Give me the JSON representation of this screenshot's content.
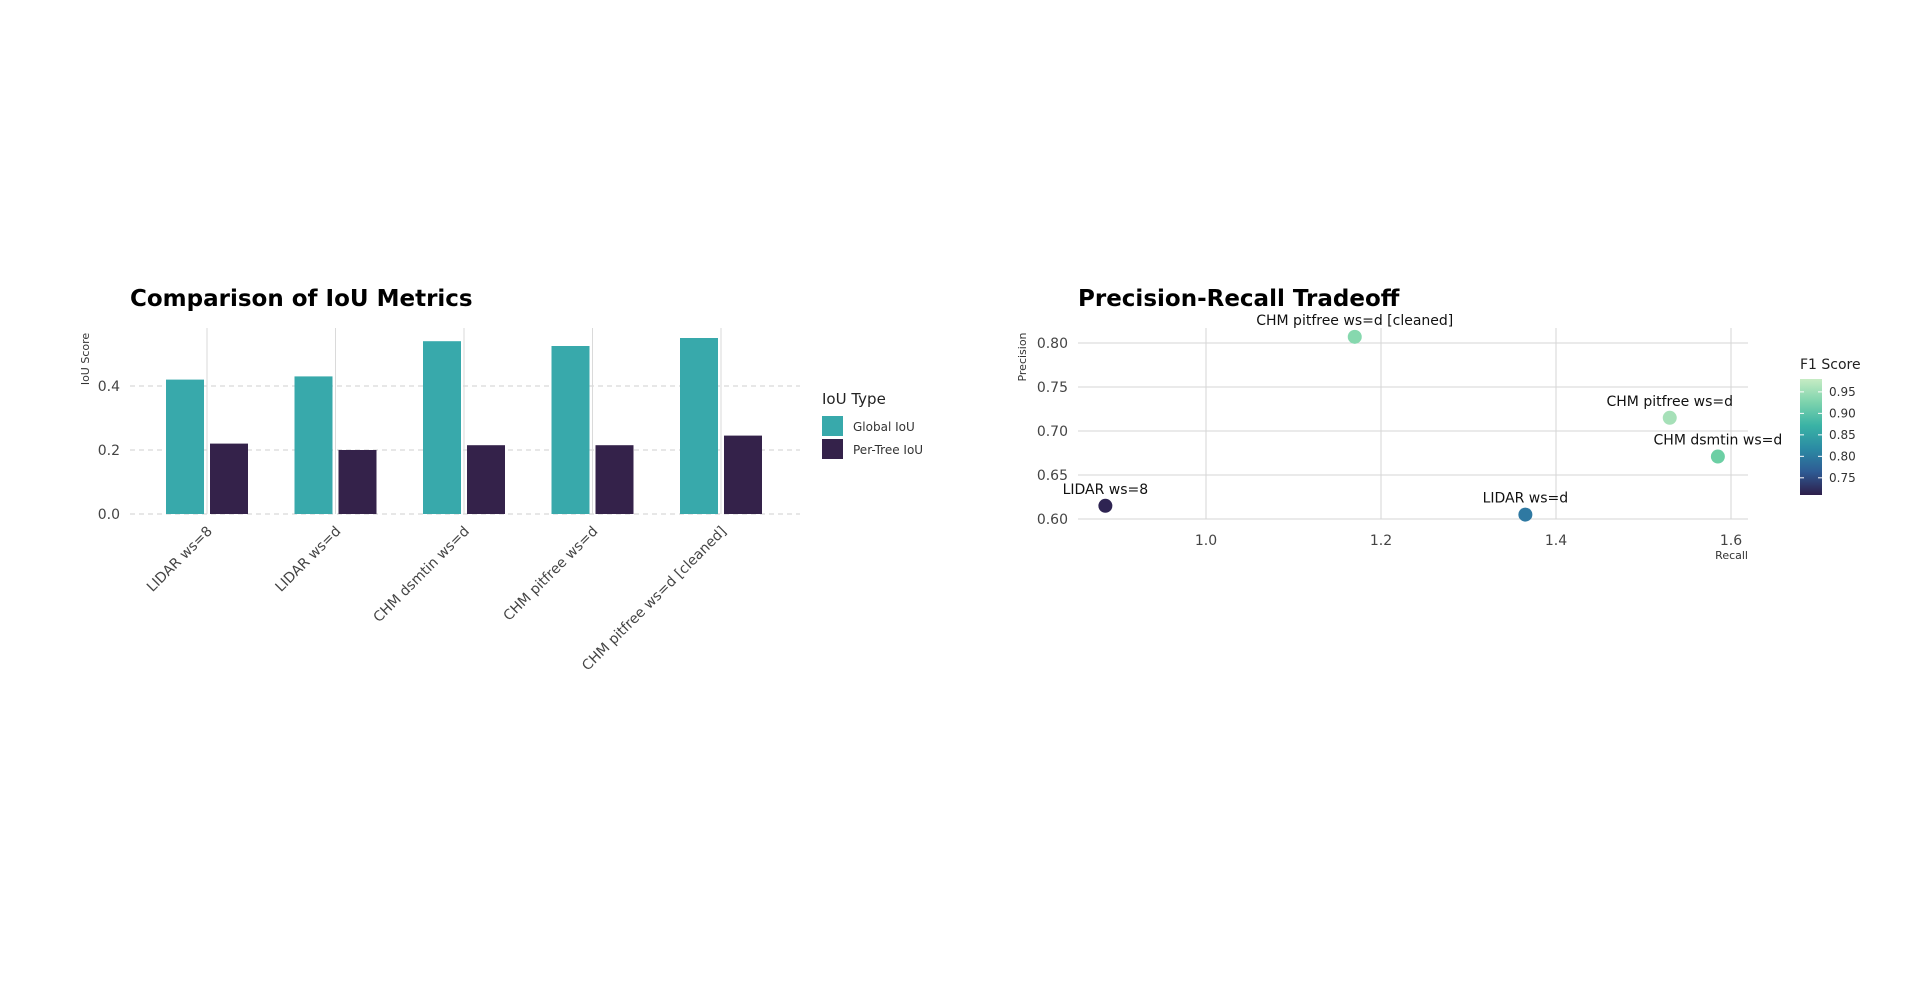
{
  "chart_data": [
    {
      "type": "bar",
      "title": "Comparison of IoU Metrics",
      "xlabel": "",
      "ylabel": "IoU Score",
      "ylim": [
        0,
        0.58
      ],
      "yticks": [
        "0.0",
        "0.2",
        "0.4"
      ],
      "categories": [
        "LIDAR ws=8",
        "LIDAR ws=d",
        "CHM dsmtin ws=d",
        "CHM pitfree ws=d",
        "CHM pitfree ws=d [cleaned]"
      ],
      "series": [
        {
          "name": "Global IoU",
          "color": "#38a9ab",
          "values": [
            0.42,
            0.43,
            0.54,
            0.525,
            0.55
          ]
        },
        {
          "name": "Per-Tree IoU",
          "color": "#34224a",
          "values": [
            0.22,
            0.2,
            0.215,
            0.215,
            0.245
          ]
        }
      ],
      "legend": {
        "title": "IoU Type",
        "placement": "right"
      },
      "grid": "horizontal dashed + vertical solid"
    },
    {
      "type": "scatter",
      "title": "Precision-Recall Tradeoff",
      "xlabel": "Recall",
      "ylabel": "Precision",
      "xlim": [
        0.8,
        1.62
      ],
      "ylim": [
        0.6,
        0.818
      ],
      "xticks": [
        "1.0",
        "1.2",
        "1.4",
        "1.6"
      ],
      "yticks": [
        "0.60",
        "0.65",
        "0.70",
        "0.75",
        "0.80"
      ],
      "points": [
        {
          "label": "LIDAR ws=8",
          "recall": 0.885,
          "precision": 0.615,
          "f1": 0.72,
          "color": "#2e2452"
        },
        {
          "label": "LIDAR ws=d",
          "recall": 1.365,
          "precision": 0.605,
          "f1": 0.84,
          "color": "#2f79a2"
        },
        {
          "label": "CHM dsmtin ws=d",
          "recall": 1.585,
          "precision": 0.671,
          "f1": 0.93,
          "color": "#6ccfa4"
        },
        {
          "label": "CHM pitfree ws=d",
          "recall": 1.53,
          "precision": 0.715,
          "f1": 0.955,
          "color": "#a6e0b8"
        },
        {
          "label": "CHM pitfree ws=d [cleaned]",
          "recall": 1.17,
          "precision": 0.807,
          "f1": 0.94,
          "color": "#86d8ae"
        }
      ],
      "colorbar": {
        "title": "F1 Score",
        "ticks": [
          "0.95",
          "0.90",
          "0.85",
          "0.80",
          "0.75"
        ],
        "range": [
          0.71,
          0.98
        ],
        "colors": [
          "#2e1e4a",
          "#2e5b94",
          "#2b8ba4",
          "#3ab3a5",
          "#7dd3ad",
          "#c6ecc4"
        ]
      },
      "grid": "solid"
    }
  ]
}
